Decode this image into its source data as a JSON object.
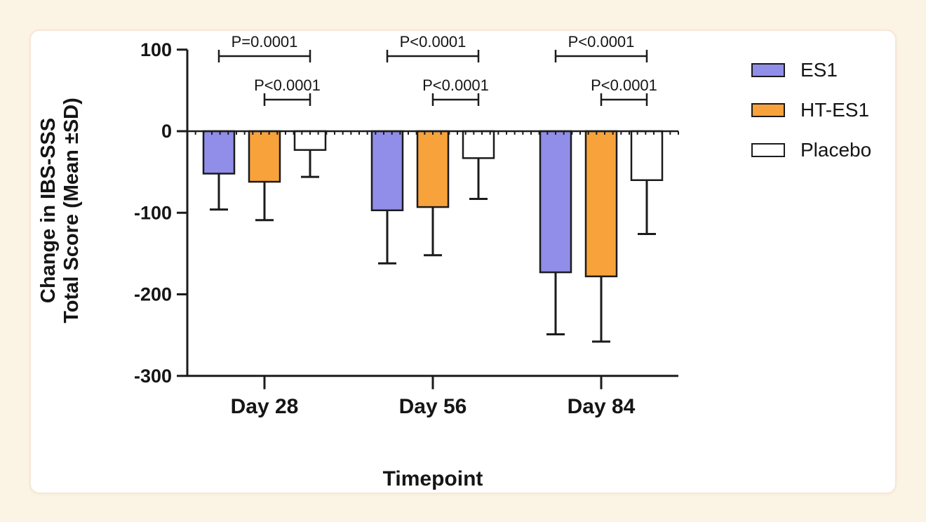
{
  "chart_data": {
    "type": "bar",
    "title": "",
    "xlabel": "Timepoint",
    "ylabel": "Change in IBS-SSS Total Score (Mean ±SD)",
    "ylabel_lines": [
      "Change in IBS-SSS",
      "Total Score (Mean ±SD)"
    ],
    "categories": [
      "Day 28",
      "Day 56",
      "Day 84"
    ],
    "series": [
      {
        "name": "ES1",
        "color": "#908ee9",
        "values": [
          -52,
          -97,
          -173
        ],
        "sd": [
          44,
          65,
          76
        ]
      },
      {
        "name": "HT-ES1",
        "color": "#f8a23c",
        "values": [
          -62,
          -93,
          -178
        ],
        "sd": [
          47,
          59,
          80
        ]
      },
      {
        "name": "Placebo",
        "color": "#ffffff",
        "values": [
          -23,
          -33,
          -60
        ],
        "sd": [
          33,
          50,
          66
        ]
      }
    ],
    "error_bars": "lower, mean minus SD, capped",
    "ylim": [
      -300,
      100
    ],
    "yticks": [
      100,
      0,
      -100,
      -200,
      -300
    ],
    "grid": false,
    "legend_position": "right",
    "significance": [
      {
        "category": "Day 28",
        "between": [
          "ES1",
          "Placebo"
        ],
        "label": "P=0.0001",
        "tier": 1
      },
      {
        "category": "Day 28",
        "between": [
          "HT-ES1",
          "Placebo"
        ],
        "label": "P<0.0001",
        "tier": 2
      },
      {
        "category": "Day 56",
        "between": [
          "ES1",
          "Placebo"
        ],
        "label": "P<0.0001",
        "tier": 1
      },
      {
        "category": "Day 56",
        "between": [
          "HT-ES1",
          "Placebo"
        ],
        "label": "P<0.0001",
        "tier": 2
      },
      {
        "category": "Day 84",
        "between": [
          "ES1",
          "Placebo"
        ],
        "label": "P<0.0001",
        "tier": 1
      },
      {
        "category": "Day 84",
        "between": [
          "HT-ES1",
          "Placebo"
        ],
        "label": "P<0.0001",
        "tier": 2
      }
    ]
  },
  "colors": {
    "page_background": "#fbf4e5",
    "card_background": "#ffffff",
    "card_border": "#f7e6d6",
    "axis_ink": "#1b1b1b"
  }
}
